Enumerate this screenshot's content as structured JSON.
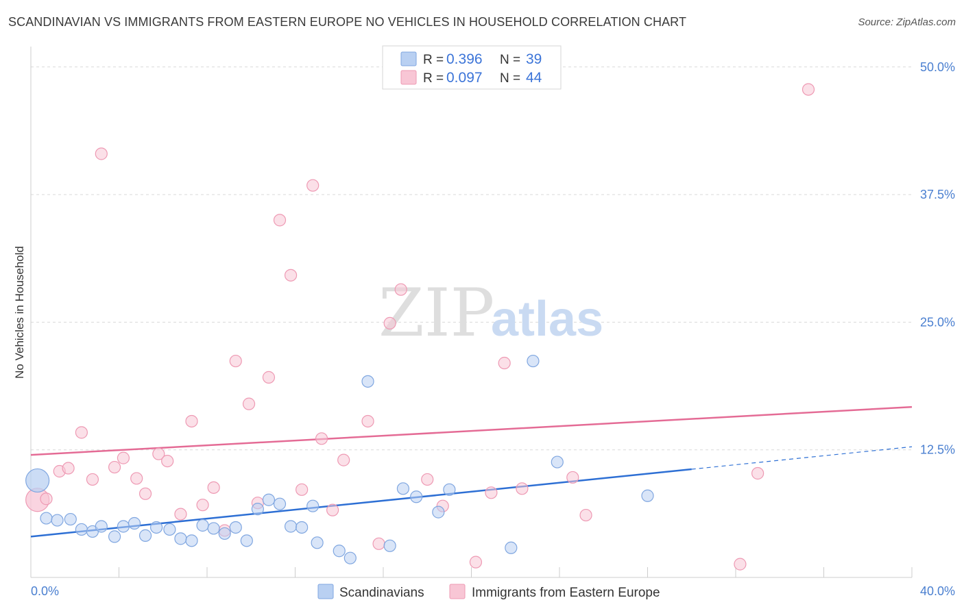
{
  "header": {
    "title": "SCANDINAVIAN VS IMMIGRANTS FROM EASTERN EUROPE NO VEHICLES IN HOUSEHOLD CORRELATION CHART",
    "source": "Source: ZipAtlas.com"
  },
  "watermark": {
    "part1": "ZIP",
    "part2": "atlas"
  },
  "legend": {
    "blue": {
      "r_label": "R =",
      "r_value": "0.396",
      "n_label": "N =",
      "n_value": "39"
    },
    "pink": {
      "r_label": "R =",
      "r_value": "0.097",
      "n_label": "N =",
      "n_value": "44"
    }
  },
  "bottom_legend": {
    "blue": "Scandinavians",
    "pink": "Immigrants from Eastern Europe"
  },
  "colors": {
    "blue_fill": "#b9d0f2",
    "blue_stroke": "#7fa6e0",
    "blue_line": "#2d6fd4",
    "pink_fill": "#f8c6d5",
    "pink_stroke": "#ee99b3",
    "pink_line": "#e46b95",
    "grid": "#d9d9d9",
    "tick_text": "#4a7fd0"
  },
  "chart_data": {
    "type": "scatter",
    "title": "SCANDINAVIAN VS IMMIGRANTS FROM EASTERN EUROPE NO VEHICLES IN HOUSEHOLD CORRELATION CHART",
    "ylabel": "No Vehicles in Household",
    "xlabel": "",
    "xlim": [
      0,
      40
    ],
    "ylim": [
      0,
      52
    ],
    "x_tick_labels": [
      "0.0%",
      "40.0%"
    ],
    "y_ticks": [
      12.5,
      25.0,
      37.5,
      50.0
    ],
    "y_tick_labels": [
      "12.5%",
      "25.0%",
      "37.5%",
      "50.0%"
    ],
    "grid": true,
    "legend_position": "top-center",
    "series": [
      {
        "name": "Scandinavians",
        "r": 0.396,
        "n": 39,
        "points": [
          [
            0.3,
            9.5,
            "large"
          ],
          [
            0.7,
            5.8
          ],
          [
            1.2,
            5.6
          ],
          [
            1.8,
            5.7
          ],
          [
            2.3,
            4.7
          ],
          [
            2.8,
            4.5
          ],
          [
            3.2,
            5.0
          ],
          [
            3.8,
            4.0
          ],
          [
            4.2,
            5.0
          ],
          [
            4.7,
            5.3
          ],
          [
            5.2,
            4.1
          ],
          [
            5.7,
            4.9
          ],
          [
            6.3,
            4.7
          ],
          [
            6.8,
            3.8
          ],
          [
            7.3,
            3.6
          ],
          [
            7.8,
            5.1
          ],
          [
            8.3,
            4.8
          ],
          [
            8.8,
            4.3
          ],
          [
            9.3,
            4.9
          ],
          [
            9.8,
            3.6
          ],
          [
            10.3,
            6.7
          ],
          [
            10.8,
            7.6
          ],
          [
            11.3,
            7.2
          ],
          [
            11.8,
            5.0
          ],
          [
            12.3,
            4.9
          ],
          [
            12.8,
            7.0
          ],
          [
            13.0,
            3.4
          ],
          [
            14.0,
            2.6
          ],
          [
            14.5,
            1.9
          ],
          [
            15.3,
            19.2
          ],
          [
            16.3,
            3.1
          ],
          [
            16.9,
            8.7
          ],
          [
            17.5,
            7.9
          ],
          [
            18.5,
            6.4
          ],
          [
            19.0,
            8.6
          ],
          [
            21.8,
            2.9
          ],
          [
            22.8,
            21.2
          ],
          [
            23.9,
            11.3
          ],
          [
            28.0,
            8.0
          ]
        ],
        "trend": {
          "x": [
            0,
            30,
            40
          ],
          "y": [
            4.0,
            10.6,
            12.8
          ],
          "dashed_from_x": 30
        }
      },
      {
        "name": "Immigrants from Eastern Europe",
        "r": 0.097,
        "n": 44,
        "points": [
          [
            0.3,
            7.6,
            "large"
          ],
          [
            0.7,
            7.7
          ],
          [
            1.3,
            10.4
          ],
          [
            1.7,
            10.7
          ],
          [
            2.3,
            14.2
          ],
          [
            2.8,
            9.6
          ],
          [
            3.2,
            41.5
          ],
          [
            3.8,
            10.8
          ],
          [
            4.2,
            11.7
          ],
          [
            4.8,
            9.7
          ],
          [
            5.2,
            8.2
          ],
          [
            5.8,
            12.1
          ],
          [
            6.2,
            11.4
          ],
          [
            6.8,
            6.2
          ],
          [
            7.3,
            15.3
          ],
          [
            7.8,
            7.1
          ],
          [
            8.3,
            8.8
          ],
          [
            8.8,
            4.6
          ],
          [
            9.3,
            21.2
          ],
          [
            9.9,
            17.0
          ],
          [
            10.3,
            7.3
          ],
          [
            10.8,
            19.6
          ],
          [
            11.3,
            35.0
          ],
          [
            11.8,
            29.6
          ],
          [
            12.3,
            8.6
          ],
          [
            12.8,
            38.4
          ],
          [
            13.2,
            13.6
          ],
          [
            13.7,
            6.6
          ],
          [
            14.2,
            11.5
          ],
          [
            15.3,
            15.3
          ],
          [
            15.8,
            3.3
          ],
          [
            16.3,
            24.9
          ],
          [
            16.8,
            28.2
          ],
          [
            18.0,
            9.6
          ],
          [
            18.7,
            7.0
          ],
          [
            20.2,
            1.5
          ],
          [
            20.9,
            8.3
          ],
          [
            21.5,
            21.0
          ],
          [
            22.3,
            8.7
          ],
          [
            24.6,
            9.8
          ],
          [
            25.2,
            6.1
          ],
          [
            32.2,
            1.3
          ],
          [
            33.0,
            10.2
          ],
          [
            35.3,
            47.8
          ]
        ],
        "trend": {
          "x": [
            0,
            40
          ],
          "y": [
            12.0,
            16.7
          ]
        }
      }
    ]
  }
}
